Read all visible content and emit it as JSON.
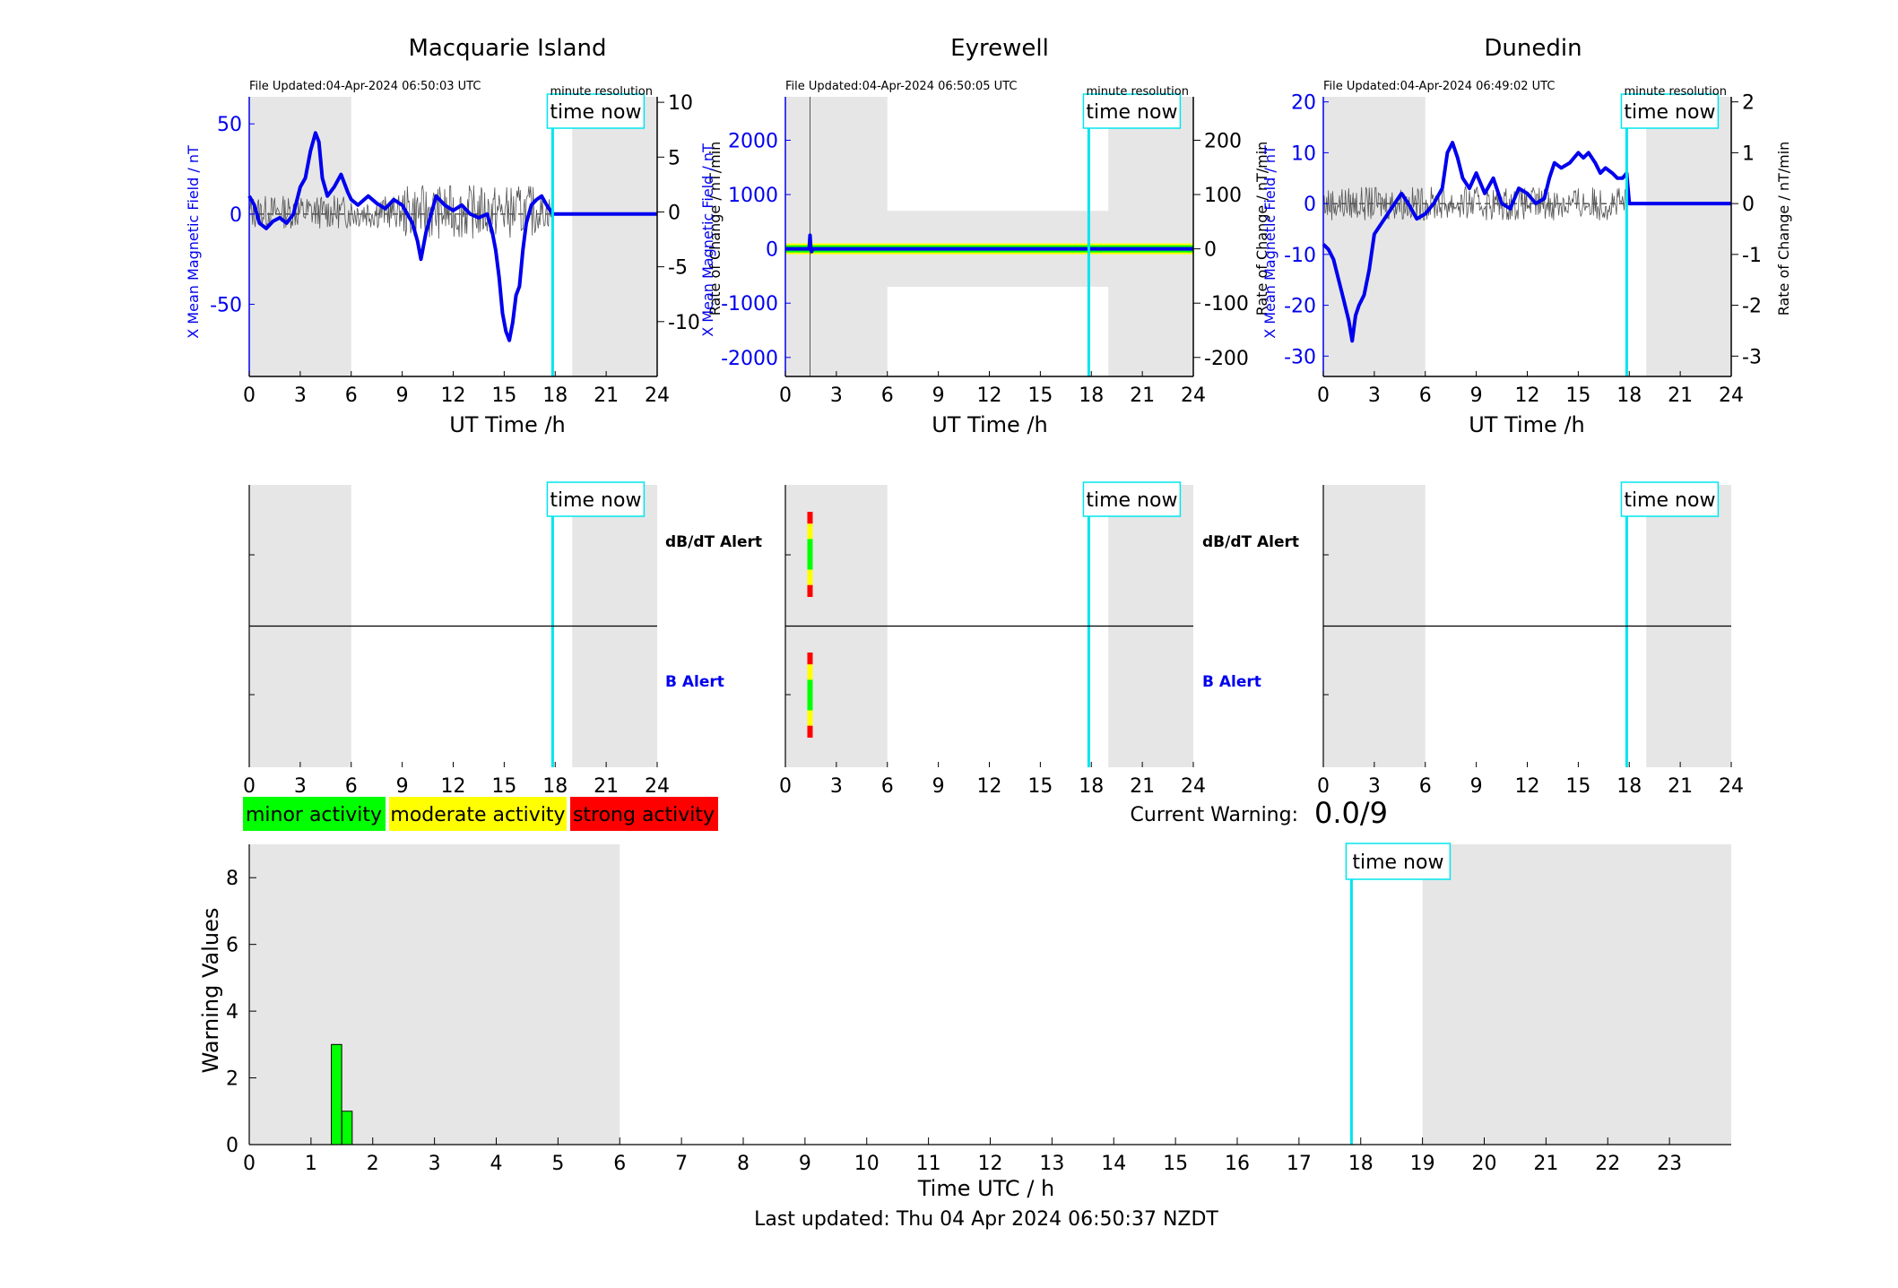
{
  "footer": {
    "last_updated": "Last updated: Thu 04 Apr 2024 06:50:37 NZDT"
  },
  "time_now_label": "time now",
  "minute_resolution_label": "minute resolution",
  "current_warning": {
    "label": "Current Warning:",
    "value": "0.0/9"
  },
  "legend": [
    {
      "label": "minor activity",
      "color": "#00ff00"
    },
    {
      "label": "moderate activity",
      "color": "#ffff00"
    },
    {
      "label": "strong activity",
      "color": "#ff0000"
    }
  ],
  "alerts": {
    "dbdt": "dB/dT Alert",
    "b": "B Alert"
  },
  "colors": {
    "field": "#0000ee",
    "rate": "#555555",
    "now": "#00e5ee",
    "night": "#e6e6e6"
  },
  "chart_data": [
    {
      "type": "line",
      "title": "Macquarie Island",
      "file_updated": "File Updated:04-Apr-2024 06:50:03 UTC",
      "xlabel": "UT Time /h",
      "ylabel_left": "X Mean Magnetic Field / nT",
      "ylabel_right": "Rate of Change / nT/min",
      "xlim": [
        0,
        24
      ],
      "xticks": [
        0,
        3,
        6,
        9,
        12,
        15,
        18,
        21,
        24
      ],
      "ylim_left": [
        -90,
        65
      ],
      "yticks_left": [
        -50,
        0,
        50
      ],
      "ylim_right": [
        -15,
        10.5
      ],
      "yticks_right": [
        -10,
        -5,
        0,
        5,
        10
      ],
      "now_h": 17.85,
      "night": [
        [
          0,
          6
        ],
        [
          19,
          24
        ]
      ],
      "series": [
        {
          "axis": "left",
          "x": [
            0,
            0.3,
            0.6,
            1,
            1.4,
            1.8,
            2.2,
            2.6,
            3,
            3.3,
            3.6,
            3.9,
            4.1,
            4.3,
            4.6,
            5,
            5.4,
            5.8,
            6,
            6.4,
            7,
            7.5,
            8,
            8.5,
            9,
            9.3,
            9.6,
            9.9,
            10.1,
            10.4,
            10.7,
            11,
            11.5,
            12,
            12.5,
            13,
            13.5,
            14,
            14.3,
            14.5,
            14.7,
            14.9,
            15.1,
            15.3,
            15.5,
            15.7,
            15.9,
            16.1,
            16.3,
            16.6,
            16.9,
            17.2,
            17.5,
            17.85,
            18,
            24
          ],
          "y": [
            10,
            5,
            -5,
            -8,
            -4,
            -2,
            -5,
            0,
            15,
            20,
            35,
            45,
            40,
            20,
            10,
            15,
            22,
            12,
            8,
            5,
            10,
            6,
            3,
            8,
            5,
            0,
            -5,
            -15,
            -25,
            -10,
            0,
            10,
            5,
            2,
            5,
            0,
            -2,
            0,
            -10,
            -20,
            -35,
            -55,
            -65,
            -70,
            -60,
            -45,
            -40,
            -20,
            -5,
            5,
            8,
            10,
            5,
            0,
            0,
            0
          ]
        }
      ]
    },
    {
      "type": "line",
      "title": "Eyrewell",
      "file_updated": "File Updated:04-Apr-2024 06:50:05 UTC",
      "xlabel": "UT Time /h",
      "ylabel_left": "X Mean Magnetic Field / nT",
      "ylabel_right": "Rate of Change / nT/min",
      "xlim": [
        0,
        24
      ],
      "xticks": [
        0,
        3,
        6,
        9,
        12,
        15,
        18,
        21,
        24
      ],
      "ylim_left": [
        -2350,
        2800
      ],
      "yticks_left": [
        -2000,
        -1000,
        0,
        1000,
        2000
      ],
      "ylim_right": [
        -235,
        280
      ],
      "yticks_right": [
        -200,
        -100,
        0,
        100,
        200
      ],
      "now_h": 17.85,
      "night": [
        [
          0,
          6
        ],
        [
          19,
          24
        ]
      ],
      "band_left": [
        -700,
        700
      ],
      "series": [
        {
          "axis": "left",
          "x": [
            0,
            1.4,
            1.45,
            1.5,
            1.55,
            1.6,
            24
          ],
          "y": [
            0,
            0,
            250,
            0,
            -50,
            0,
            0
          ]
        }
      ]
    },
    {
      "type": "line",
      "title": "Dunedin",
      "file_updated": "File Updated:04-Apr-2024 06:49:02 UTC",
      "xlabel": "UT Time /h",
      "ylabel_left": "X Mean Magnetic Field / nT",
      "ylabel_right": "Rate of Change / nT/min",
      "xlim": [
        0,
        24
      ],
      "xticks": [
        0,
        3,
        6,
        9,
        12,
        15,
        18,
        21,
        24
      ],
      "ylim_left": [
        -34,
        21
      ],
      "yticks_left": [
        -30,
        -20,
        -10,
        0,
        10,
        20
      ],
      "ylim_right": [
        -3.4,
        2.1
      ],
      "yticks_right": [
        -3,
        -2,
        -1,
        0,
        1,
        2
      ],
      "now_h": 17.85,
      "night": [
        [
          0,
          6
        ],
        [
          19,
          24
        ]
      ],
      "series": [
        {
          "axis": "left",
          "x": [
            0,
            0.3,
            0.6,
            0.9,
            1.2,
            1.5,
            1.7,
            1.9,
            2.1,
            2.4,
            2.7,
            3,
            3.4,
            3.8,
            4.2,
            4.6,
            5,
            5.5,
            6,
            6.5,
            7,
            7.3,
            7.6,
            7.9,
            8.2,
            8.6,
            9,
            9.5,
            10,
            10.5,
            11,
            11.5,
            12,
            12.5,
            13,
            13.3,
            13.6,
            14,
            14.5,
            15,
            15.3,
            15.6,
            16,
            16.3,
            16.6,
            17,
            17.3,
            17.6,
            17.85,
            18,
            24
          ],
          "y": [
            -8,
            -9,
            -11,
            -15,
            -19,
            -23,
            -27,
            -22,
            -20,
            -18,
            -13,
            -6,
            -4,
            -2,
            0,
            2,
            0,
            -3,
            -2,
            0,
            3,
            10,
            12,
            9,
            5,
            3,
            6,
            2,
            5,
            0,
            -1,
            3,
            2,
            0,
            1,
            5,
            8,
            7,
            8,
            10,
            9,
            10,
            8,
            6,
            7,
            6,
            5,
            5,
            6,
            0,
            0
          ]
        }
      ]
    },
    {
      "type": "bar",
      "xlabel": "Time UTC / h",
      "ylabel": "Warning Values",
      "xlim": [
        0,
        24
      ],
      "ylim": [
        0,
        9
      ],
      "xticks": [
        0,
        1,
        2,
        3,
        4,
        5,
        6,
        7,
        8,
        9,
        10,
        11,
        12,
        13,
        14,
        15,
        16,
        17,
        18,
        19,
        20,
        21,
        22,
        23
      ],
      "yticks": [
        0,
        2,
        4,
        6,
        8
      ],
      "now_h": 17.85,
      "night": [
        [
          0,
          6
        ],
        [
          19,
          24
        ]
      ],
      "bars": [
        {
          "x": 1.33,
          "w": 0.167,
          "value": 3
        },
        {
          "x": 1.5,
          "w": 0.167,
          "value": 1
        }
      ]
    }
  ]
}
